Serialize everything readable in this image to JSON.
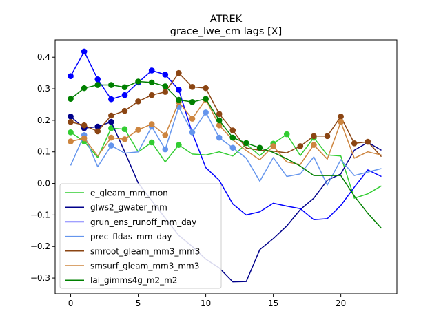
{
  "chart_data": {
    "type": "line",
    "title": "ATREK",
    "subtitle": "grace_lwe_cm lags [X]",
    "xlabel": "",
    "ylabel": "",
    "xlim": [
      -1.15,
      24.15
    ],
    "ylim": [
      -0.35,
      0.455
    ],
    "x_ticks": [
      0,
      5,
      10,
      15,
      20
    ],
    "y_ticks": [
      -0.3,
      -0.2,
      -0.1,
      0.0,
      0.1,
      0.2,
      0.3,
      0.4
    ],
    "x_tick_labels": [
      "0",
      "5",
      "10",
      "15",
      "20"
    ],
    "y_tick_labels": [
      "−0.3",
      "−0.2",
      "−0.1",
      "0.0",
      "0.1",
      "0.2",
      "0.3",
      "0.4"
    ],
    "grid": false,
    "legend_position": "lower-left",
    "x": [
      0,
      1,
      2,
      3,
      4,
      5,
      6,
      7,
      8,
      9,
      10,
      11,
      12,
      13,
      14,
      15,
      16,
      17,
      18,
      19,
      20,
      21,
      22,
      23
    ],
    "series": [
      {
        "name": "e_gleam_mm_mon",
        "color": "#32cd32",
        "values": [
          0.162,
          0.133,
          0.082,
          0.175,
          0.172,
          0.1,
          0.13,
          0.068,
          0.122,
          0.093,
          0.09,
          0.1,
          0.087,
          0.125,
          0.088,
          0.126,
          0.156,
          0.088,
          0.145,
          0.09,
          0.087,
          -0.047,
          -0.033,
          -0.008
        ],
        "markers": [
          0,
          1,
          3,
          4,
          6,
          8,
          15,
          16,
          18
        ]
      },
      {
        "name": "glws2_gwater_mm",
        "color": "#00008b",
        "values": [
          0.212,
          0.175,
          0.18,
          0.195,
          0.1,
          0.001,
          -0.055,
          -0.11,
          -0.165,
          -0.2,
          -0.24,
          -0.268,
          -0.312,
          -0.311,
          -0.21,
          -0.175,
          -0.135,
          -0.083,
          -0.047,
          0.01,
          0.03,
          0.105,
          0.13,
          0.105
        ],
        "markers": [
          0,
          1,
          2,
          3
        ]
      },
      {
        "name": "grun_ens_runoff_mm_day",
        "color": "#0000ff",
        "values": [
          0.34,
          0.418,
          0.33,
          0.267,
          0.28,
          0.32,
          0.358,
          0.345,
          0.297,
          0.16,
          0.05,
          0.01,
          -0.065,
          -0.1,
          -0.09,
          -0.063,
          -0.072,
          -0.08,
          -0.115,
          -0.112,
          -0.07,
          -0.012,
          0.043,
          0.022
        ],
        "markers": [
          0,
          1,
          2,
          3,
          4,
          5,
          6,
          7,
          8
        ]
      },
      {
        "name": "prec_fldas_mm_day",
        "color": "#6495ed",
        "values": [
          0.057,
          0.153,
          0.053,
          0.12,
          0.096,
          0.1,
          0.18,
          0.108,
          0.242,
          0.162,
          0.225,
          0.145,
          0.113,
          0.08,
          0.007,
          0.082,
          0.022,
          0.03,
          0.084,
          -0.005,
          0.075,
          0.025,
          0.036,
          0.047
        ],
        "markers": [
          1,
          3,
          6,
          7,
          8,
          9,
          10,
          11,
          12
        ]
      },
      {
        "name": "smroot_gleam_mm3_mm3",
        "color": "#8b4513",
        "values": [
          0.195,
          0.184,
          0.165,
          0.215,
          0.23,
          0.26,
          0.28,
          0.29,
          0.35,
          0.306,
          0.302,
          0.22,
          0.168,
          0.112,
          0.105,
          0.102,
          0.097,
          0.118,
          0.15,
          0.15,
          0.212,
          0.127,
          0.132,
          0.085
        ],
        "markers": [
          0,
          1,
          2,
          3,
          4,
          5,
          6,
          7,
          8,
          9,
          10,
          11,
          12,
          17,
          18,
          19,
          20,
          21,
          22
        ]
      },
      {
        "name": "smsurf_gleam_mm3_mm3",
        "color": "#cd853f",
        "values": [
          0.133,
          0.143,
          0.087,
          0.145,
          0.14,
          0.17,
          0.188,
          0.153,
          0.258,
          0.205,
          0.266,
          0.184,
          0.138,
          0.104,
          0.075,
          0.118,
          0.068,
          0.06,
          0.122,
          0.077,
          0.195,
          0.08,
          0.1,
          0.09
        ],
        "markers": [
          0,
          1,
          3,
          4,
          5,
          6,
          7,
          8,
          9,
          10,
          11,
          15,
          18,
          20
        ]
      },
      {
        "name": "lai_gimms4g_m2_m2",
        "color": "#008000",
        "values": [
          0.268,
          0.302,
          0.312,
          0.312,
          0.305,
          0.323,
          0.32,
          0.308,
          0.265,
          0.258,
          0.268,
          0.2,
          0.145,
          0.128,
          0.113,
          0.098,
          0.078,
          0.055,
          0.025,
          0.025,
          0.025,
          -0.04,
          -0.095,
          -0.142
        ],
        "markers": [
          0,
          1,
          2,
          3,
          4,
          5,
          6,
          7,
          8,
          9,
          10,
          11,
          12,
          13,
          14
        ]
      }
    ]
  }
}
